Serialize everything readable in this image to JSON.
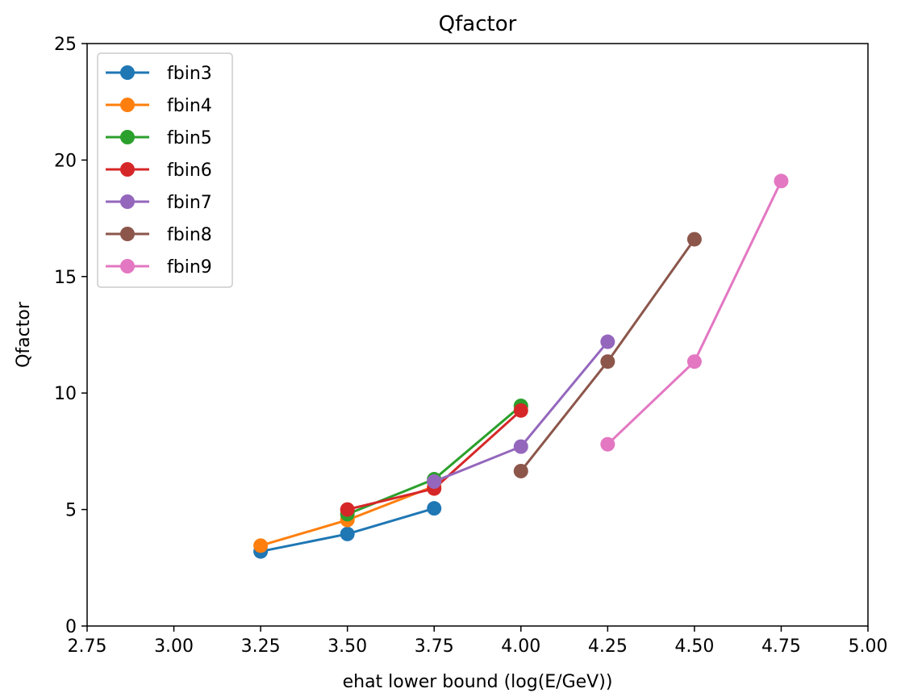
{
  "chart_data": {
    "type": "line",
    "title": "Qfactor",
    "xlabel": "ehat lower bound (log(E/GeV))",
    "ylabel": "Qfactor",
    "xlim": [
      2.75,
      5.0
    ],
    "ylim": [
      0,
      25
    ],
    "xticks": [
      "2.75",
      "3.00",
      "3.25",
      "3.50",
      "3.75",
      "4.00",
      "4.25",
      "4.50",
      "4.75",
      "5.00"
    ],
    "yticks": [
      "0",
      "5",
      "10",
      "15",
      "20",
      "25"
    ],
    "grid": false,
    "legend_position": "top-left",
    "series": [
      {
        "name": "fbin3",
        "color": "#1f77b4",
        "points": [
          [
            3.25,
            3.2
          ],
          [
            3.5,
            3.95
          ],
          [
            3.75,
            5.05
          ]
        ]
      },
      {
        "name": "fbin4",
        "color": "#ff7f0e",
        "points": [
          [
            3.25,
            3.45
          ],
          [
            3.5,
            4.55
          ],
          [
            3.75,
            6.0
          ]
        ]
      },
      {
        "name": "fbin5",
        "color": "#2ca02c",
        "points": [
          [
            3.5,
            4.8
          ],
          [
            3.75,
            6.3
          ],
          [
            4.0,
            9.45
          ]
        ]
      },
      {
        "name": "fbin6",
        "color": "#d62728",
        "points": [
          [
            3.5,
            5.0
          ],
          [
            3.75,
            5.9
          ],
          [
            4.0,
            9.25
          ]
        ]
      },
      {
        "name": "fbin7",
        "color": "#9467bd",
        "points": [
          [
            3.75,
            6.2
          ],
          [
            4.0,
            7.7
          ],
          [
            4.25,
            12.2
          ]
        ]
      },
      {
        "name": "fbin8",
        "color": "#8c564b",
        "points": [
          [
            4.0,
            6.65
          ],
          [
            4.25,
            11.35
          ],
          [
            4.5,
            16.6
          ]
        ]
      },
      {
        "name": "fbin9",
        "color": "#e377c2",
        "points": [
          [
            4.25,
            7.8
          ],
          [
            4.5,
            11.35
          ],
          [
            4.75,
            19.1
          ]
        ]
      }
    ]
  }
}
